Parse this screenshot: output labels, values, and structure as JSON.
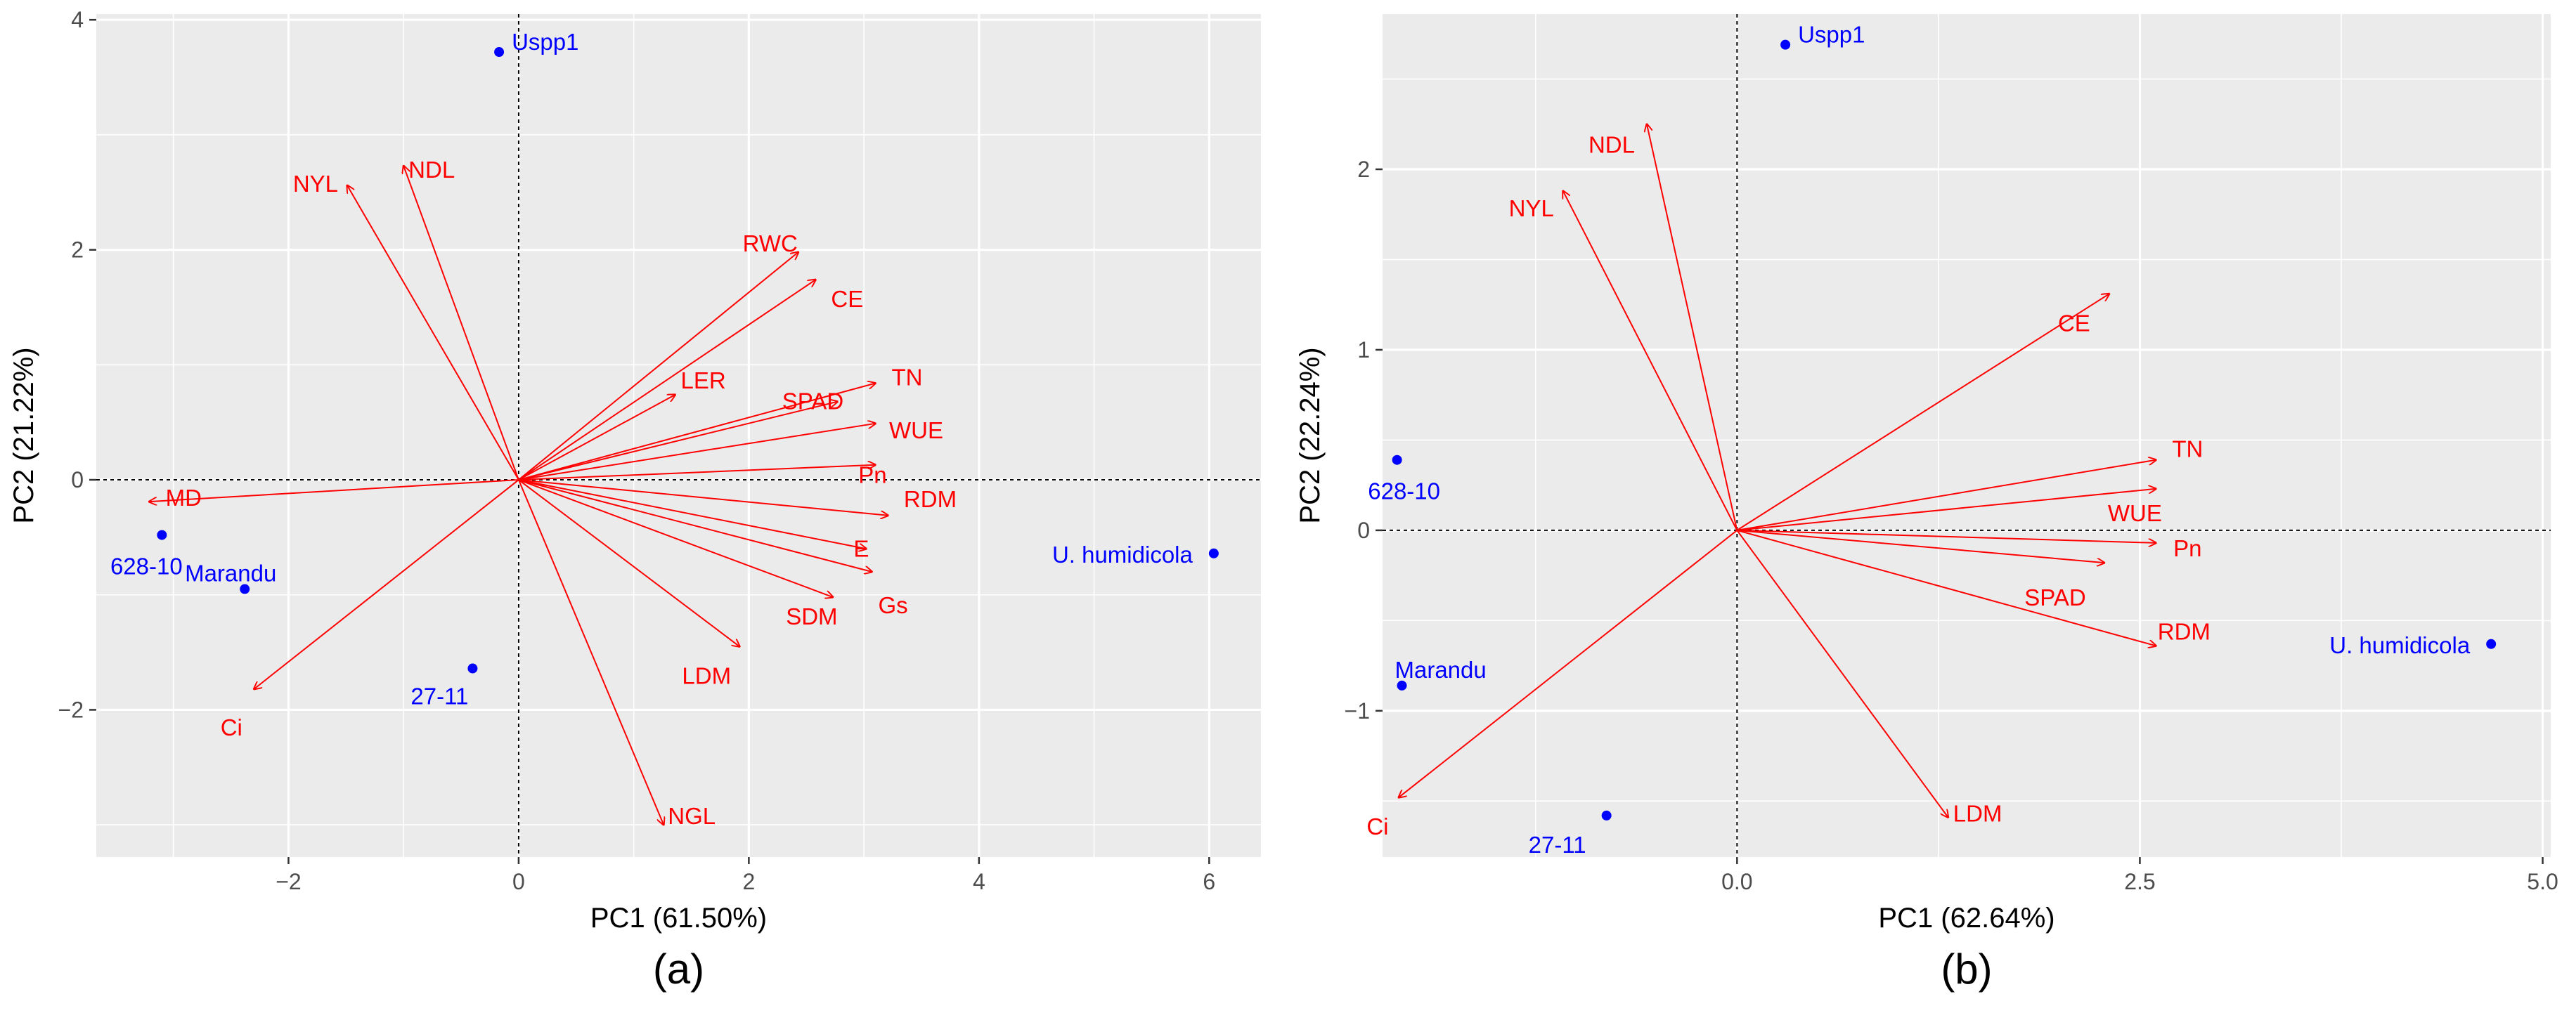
{
  "chart_data": [
    {
      "type": "scatter",
      "subtype": "pca-biplot",
      "caption": "(a)",
      "xlabel": "PC1 (61.50%)",
      "ylabel": "PC2 (21.22%)",
      "xlim": [
        -3.67,
        6.45
      ],
      "ylim": [
        -3.28,
        4.05
      ],
      "x_ticks": [
        -2,
        0,
        2,
        4,
        6
      ],
      "x_tick_labels": [
        "−2",
        "0",
        "2",
        "4",
        "6"
      ],
      "y_ticks": [
        -2,
        0,
        2,
        4
      ],
      "y_tick_labels": [
        "−2",
        "0",
        "2",
        "4"
      ],
      "grid": true,
      "reference_lines": {
        "x": 0,
        "y": 0,
        "style": "dashed"
      },
      "colors": {
        "panel_bg": "#ebebeb",
        "grid": "#ffffff",
        "vector": "#ff0000",
        "point": "#0000ff",
        "axis_text": "#4d4d4d"
      },
      "vectors": [
        {
          "name": "NDL",
          "x": -1.0,
          "y": 2.73
        },
        {
          "name": "NYL",
          "x": -1.49,
          "y": 2.56
        },
        {
          "name": "RWC",
          "x": 2.43,
          "y": 1.98
        },
        {
          "name": "CE",
          "x": 2.58,
          "y": 1.74
        },
        {
          "name": "LER",
          "x": 1.36,
          "y": 0.74
        },
        {
          "name": "TN",
          "x": 3.1,
          "y": 0.84
        },
        {
          "name": "SPAD",
          "x": 2.77,
          "y": 0.68
        },
        {
          "name": "WUE",
          "x": 3.1,
          "y": 0.49
        },
        {
          "name": "Pn",
          "x": 3.1,
          "y": 0.13
        },
        {
          "name": "RDM",
          "x": 3.21,
          "y": -0.31
        },
        {
          "name": "E",
          "x": 3.02,
          "y": -0.6
        },
        {
          "name": "Gs",
          "x": 3.07,
          "y": -0.8
        },
        {
          "name": "SDM",
          "x": 2.73,
          "y": -1.02
        },
        {
          "name": "LDM",
          "x": 1.92,
          "y": -1.45
        },
        {
          "name": "NGL",
          "x": 1.26,
          "y": -3.0
        },
        {
          "name": "MD",
          "x": -3.21,
          "y": -0.19
        },
        {
          "name": "Ci",
          "x": -2.3,
          "y": -1.82
        }
      ],
      "points": [
        {
          "name": "Uspp1",
          "x": -0.17,
          "y": 3.72
        },
        {
          "name": "628-10",
          "x": -3.1,
          "y": -0.48
        },
        {
          "name": "Marandu",
          "x": -2.38,
          "y": -0.95
        },
        {
          "name": "27-11",
          "x": -0.4,
          "y": -1.64
        },
        {
          "name": "U. humidicola",
          "x": 6.04,
          "y": -0.64
        }
      ]
    },
    {
      "type": "scatter",
      "subtype": "pca-biplot",
      "caption": "(b)",
      "xlabel": "PC1 (62.64%)",
      "ylabel": "PC2 (22.24%)",
      "xlim": [
        -2.2,
        5.05
      ],
      "ylim": [
        -1.81,
        2.86
      ],
      "x_ticks": [
        0.0,
        2.5,
        5.0
      ],
      "x_tick_labels": [
        "0.0",
        "2.5",
        "5.0"
      ],
      "y_ticks": [
        -1,
        0,
        1,
        2
      ],
      "y_tick_labels": [
        "−1",
        "0",
        "1",
        "2"
      ],
      "grid": true,
      "reference_lines": {
        "x": 0,
        "y": 0,
        "style": "dashed"
      },
      "colors": {
        "panel_bg": "#ebebeb",
        "grid": "#ffffff",
        "vector": "#ff0000",
        "point": "#0000ff",
        "axis_text": "#4d4d4d"
      },
      "vectors": [
        {
          "name": "NDL",
          "x": -0.56,
          "y": 2.25
        },
        {
          "name": "NYL",
          "x": -1.08,
          "y": 1.88
        },
        {
          "name": "CE",
          "x": 2.31,
          "y": 1.31
        },
        {
          "name": "TN",
          "x": 2.6,
          "y": 0.39
        },
        {
          "name": "WUE",
          "x": 2.6,
          "y": 0.23
        },
        {
          "name": "Pn",
          "x": 2.6,
          "y": -0.07
        },
        {
          "name": "SPAD",
          "x": 2.28,
          "y": -0.18
        },
        {
          "name": "RDM",
          "x": 2.6,
          "y": -0.64
        },
        {
          "name": "LDM",
          "x": 1.31,
          "y": -1.59
        },
        {
          "name": "Ci",
          "x": -2.1,
          "y": -1.48
        }
      ],
      "points": [
        {
          "name": "Uspp1",
          "x": 0.3,
          "y": 2.69
        },
        {
          "name": "628-10",
          "x": -2.11,
          "y": 0.39
        },
        {
          "name": "Marandu",
          "x": -2.08,
          "y": -0.86
        },
        {
          "name": "27-11",
          "x": -0.81,
          "y": -1.58
        },
        {
          "name": "U. humidicola",
          "x": 4.68,
          "y": -0.63
        }
      ]
    }
  ]
}
